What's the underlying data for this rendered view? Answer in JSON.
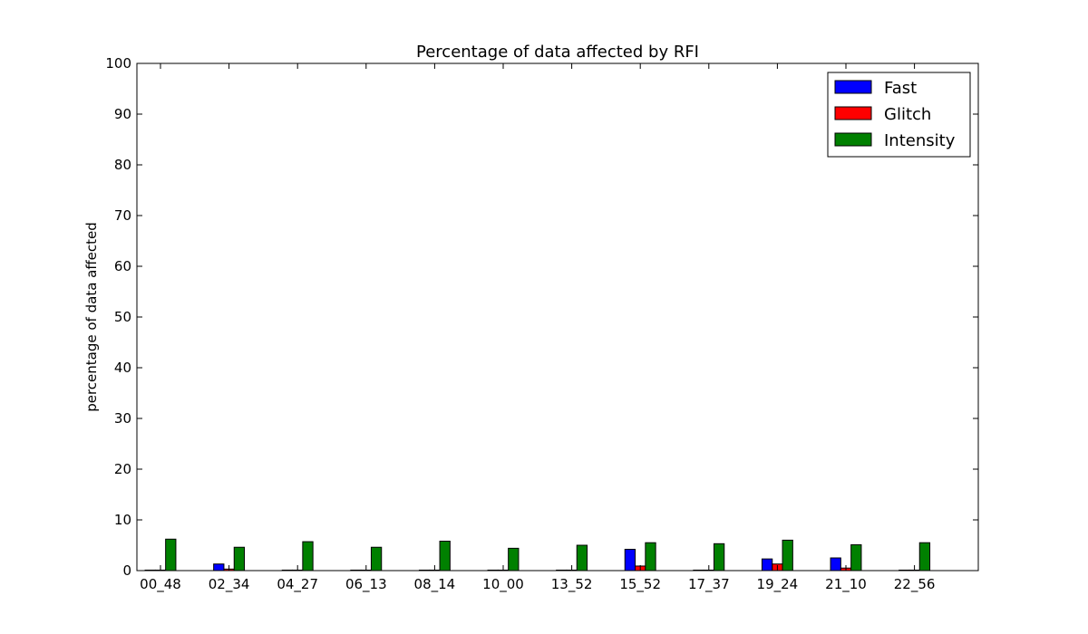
{
  "chart_data": {
    "type": "bar",
    "title": "Percentage of data affected by RFI",
    "xlabel": "",
    "ylabel": "percentage of data affected",
    "ylim": [
      0,
      100
    ],
    "yticks": [
      0,
      10,
      20,
      30,
      40,
      50,
      60,
      70,
      80,
      90,
      100
    ],
    "categories": [
      "00_48",
      "02_34",
      "04_27",
      "06_13",
      "08_14",
      "10_00",
      "13_52",
      "15_52",
      "17_37",
      "19_24",
      "21_10",
      "22_56"
    ],
    "series": [
      {
        "name": "Fast",
        "color": "#0000ff",
        "values": [
          0.1,
          1.3,
          0.1,
          0.1,
          0.1,
          0.1,
          0.1,
          4.2,
          0.1,
          2.3,
          2.5,
          0.1
        ]
      },
      {
        "name": "Glitch",
        "color": "#ff0000",
        "values": [
          0.1,
          0.3,
          0.1,
          0.1,
          0.1,
          0.1,
          0.1,
          0.9,
          0.1,
          1.3,
          0.5,
          0.1
        ]
      },
      {
        "name": "Intensity",
        "color": "#008000",
        "values": [
          6.2,
          4.6,
          5.7,
          4.6,
          5.8,
          4.4,
          5.0,
          5.5,
          5.3,
          6.0,
          5.1,
          5.5
        ]
      }
    ],
    "legend_position": "top-right",
    "grid": false
  }
}
